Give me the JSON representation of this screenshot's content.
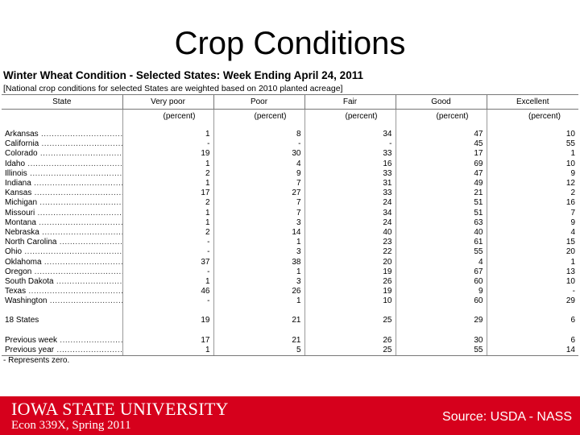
{
  "slide": {
    "title": "Crop Conditions",
    "footer_logo": "IOWA STATE UNIVERSITY",
    "course": "Econ 339X, Spring 2011",
    "source": "Source: USDA - NASS"
  },
  "table": {
    "title": "Winter Wheat Condition - Selected States: Week Ending April 24, 2011",
    "subtitle": "[National crop conditions for selected States are weighted based on 2010 planted acreage]",
    "columns": [
      "State",
      "Very poor",
      "Poor",
      "Fair",
      "Good",
      "Excellent"
    ],
    "units": "(percent)",
    "rows": [
      {
        "state": "Arkansas",
        "values": [
          "1",
          "8",
          "34",
          "47",
          "10"
        ]
      },
      {
        "state": "California",
        "values": [
          "-",
          "-",
          "-",
          "45",
          "55"
        ]
      },
      {
        "state": "Colorado",
        "values": [
          "19",
          "30",
          "33",
          "17",
          "1"
        ]
      },
      {
        "state": "Idaho",
        "values": [
          "1",
          "4",
          "16",
          "69",
          "10"
        ]
      },
      {
        "state": "Illinois",
        "values": [
          "2",
          "9",
          "33",
          "47",
          "9"
        ]
      },
      {
        "state": "Indiana",
        "values": [
          "1",
          "7",
          "31",
          "49",
          "12"
        ]
      },
      {
        "state": "Kansas",
        "values": [
          "17",
          "27",
          "33",
          "21",
          "2"
        ]
      },
      {
        "state": "Michigan",
        "values": [
          "2",
          "7",
          "24",
          "51",
          "16"
        ]
      },
      {
        "state": "Missouri",
        "values": [
          "1",
          "7",
          "34",
          "51",
          "7"
        ]
      },
      {
        "state": "Montana",
        "values": [
          "1",
          "3",
          "24",
          "63",
          "9"
        ]
      },
      {
        "state": "Nebraska",
        "values": [
          "2",
          "14",
          "40",
          "40",
          "4"
        ]
      },
      {
        "state": "North Carolina",
        "values": [
          "-",
          "1",
          "23",
          "61",
          "15"
        ]
      },
      {
        "state": "Ohio",
        "values": [
          "-",
          "3",
          "22",
          "55",
          "20"
        ]
      },
      {
        "state": "Oklahoma",
        "values": [
          "37",
          "38",
          "20",
          "4",
          "1"
        ]
      },
      {
        "state": "Oregon",
        "values": [
          "-",
          "1",
          "19",
          "67",
          "13"
        ]
      },
      {
        "state": "South Dakota",
        "values": [
          "1",
          "3",
          "26",
          "60",
          "10"
        ]
      },
      {
        "state": "Texas",
        "values": [
          "46",
          "26",
          "19",
          "9",
          "-"
        ]
      },
      {
        "state": "Washington",
        "values": [
          "-",
          "1",
          "10",
          "60",
          "29"
        ]
      }
    ],
    "summary": {
      "state": "18 States",
      "values": [
        "19",
        "21",
        "25",
        "29",
        "6"
      ]
    },
    "previous": [
      {
        "state": "Previous week",
        "values": [
          "17",
          "21",
          "26",
          "30",
          "6"
        ]
      },
      {
        "state": "Previous year",
        "values": [
          "1",
          "5",
          "25",
          "55",
          "14"
        ]
      }
    ],
    "footnote": "- Represents zero."
  }
}
